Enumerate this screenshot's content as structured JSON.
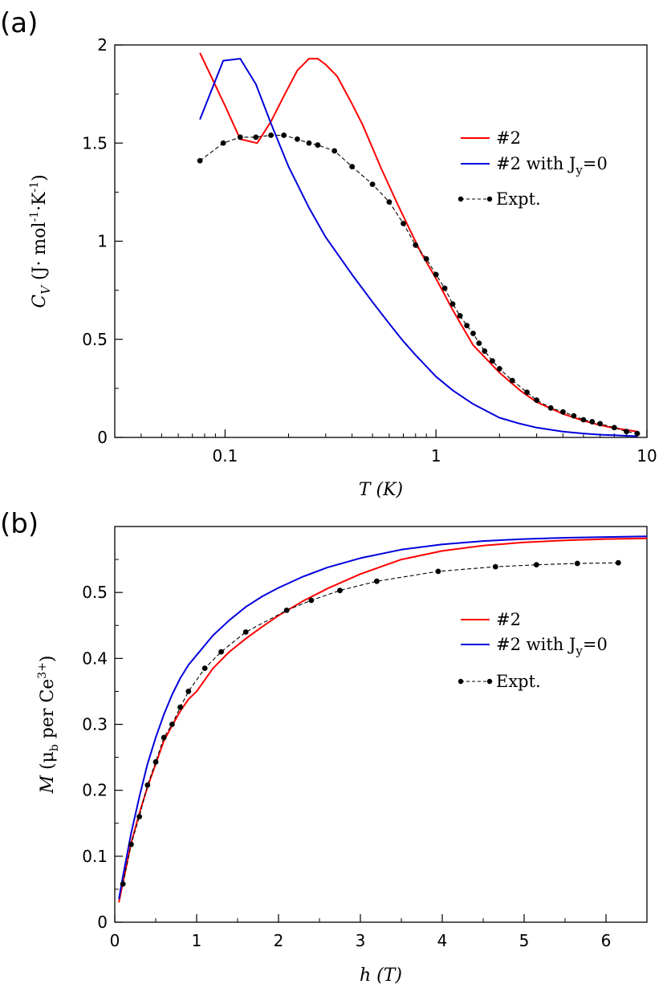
{
  "chart_data": [
    {
      "type": "line",
      "panel_tag": "(a)",
      "xscale": "log",
      "xlim": [
        0.03,
        10
      ],
      "ylim": [
        0,
        2
      ],
      "xticks": [
        0.1,
        1,
        10
      ],
      "xtick_labels": [
        "0.1",
        "1",
        "10"
      ],
      "yticks": [
        0,
        0.5,
        1,
        1.5,
        2
      ],
      "ytick_labels": [
        "0",
        "0.5",
        "1",
        "1.5",
        "2"
      ],
      "xlabel": "T (K)",
      "ylabel": {
        "main": "C",
        "sub": "V",
        "unit_open": "(J· mol",
        "exp1": "-1",
        "mid": "·K",
        "exp2": "-1",
        "unit_close": ")"
      },
      "legend_position": "right-middle",
      "series": [
        {
          "name": "#2",
          "color": "#ff0000",
          "style": "solid",
          "x": [
            0.076,
            0.1,
            0.118,
            0.142,
            0.165,
            0.19,
            0.22,
            0.25,
            0.275,
            0.3,
            0.34,
            0.4,
            0.45,
            0.55,
            0.65,
            0.75,
            0.85,
            1.0,
            1.2,
            1.5,
            2.0,
            2.5,
            3.0,
            4.0,
            5.0,
            6.0,
            7.0,
            9.0
          ],
          "y": [
            1.96,
            1.69,
            1.52,
            1.5,
            1.61,
            1.74,
            1.87,
            1.93,
            1.93,
            1.9,
            1.84,
            1.7,
            1.59,
            1.37,
            1.2,
            1.06,
            0.94,
            0.81,
            0.65,
            0.47,
            0.33,
            0.24,
            0.18,
            0.12,
            0.085,
            0.062,
            0.048,
            0.03
          ]
        },
        {
          "name": "#2 with J",
          "name_sub": "y",
          "name_suffix": "=0",
          "color": "#0000dd",
          "style": "solid",
          "x": [
            0.076,
            0.098,
            0.118,
            0.14,
            0.165,
            0.2,
            0.25,
            0.3,
            0.4,
            0.5,
            0.6,
            0.7,
            0.8,
            1.0,
            1.2,
            1.5,
            2.0,
            2.5,
            3.0,
            4.0,
            5.0,
            6.0,
            7.0,
            8.0,
            9.0
          ],
          "y": [
            1.62,
            1.92,
            1.93,
            1.8,
            1.6,
            1.38,
            1.17,
            1.02,
            0.83,
            0.69,
            0.58,
            0.49,
            0.42,
            0.31,
            0.24,
            0.17,
            0.1,
            0.07,
            0.05,
            0.03,
            0.02,
            0.014,
            0.011,
            0.008,
            0.006
          ]
        },
        {
          "name": "Expt.",
          "color": "#000000",
          "style": "dashed-markers",
          "x": [
            0.076,
            0.098,
            0.118,
            0.14,
            0.165,
            0.19,
            0.22,
            0.25,
            0.275,
            0.33,
            0.4,
            0.5,
            0.6,
            0.7,
            0.8,
            0.9,
            1.0,
            1.1,
            1.2,
            1.3,
            1.4,
            1.5,
            1.6,
            1.7,
            1.85,
            2.0,
            2.3,
            2.7,
            3.0,
            3.5,
            4.0,
            4.5,
            5.0,
            5.5,
            6.0,
            7.0,
            8.0,
            9.0
          ],
          "y": [
            1.41,
            1.5,
            1.53,
            1.53,
            1.54,
            1.54,
            1.52,
            1.5,
            1.49,
            1.46,
            1.38,
            1.29,
            1.2,
            1.09,
            0.98,
            0.91,
            0.83,
            0.76,
            0.68,
            0.62,
            0.57,
            0.53,
            0.48,
            0.44,
            0.39,
            0.35,
            0.29,
            0.23,
            0.19,
            0.15,
            0.13,
            0.11,
            0.09,
            0.08,
            0.07,
            0.05,
            0.03,
            0.02
          ]
        }
      ]
    },
    {
      "type": "line",
      "panel_tag": "(b)",
      "xscale": "linear",
      "xlim": [
        0,
        6.5
      ],
      "ylim": [
        0,
        0.6
      ],
      "xticks": [
        0,
        1,
        2,
        3,
        4,
        5,
        6
      ],
      "xtick_labels": [
        "0",
        "1",
        "2",
        "3",
        "4",
        "5",
        "6"
      ],
      "yticks": [
        0,
        0.1,
        0.2,
        0.3,
        0.4,
        0.5
      ],
      "ytick_labels": [
        "0",
        "0.1",
        "0.2",
        "0.3",
        "0.4",
        "0.5"
      ],
      "xlabel": "h (T)",
      "ylabel": {
        "main": "M",
        "unit_open": "(μ",
        "sub": "b",
        "mid": " per Ce",
        "exp": "3+",
        "unit_close": ")"
      },
      "legend_position": "right-middle",
      "series": [
        {
          "name": "#2",
          "color": "#ff0000",
          "style": "solid",
          "x": [
            0.05,
            0.1,
            0.2,
            0.3,
            0.4,
            0.5,
            0.6,
            0.7,
            0.8,
            0.9,
            1.0,
            1.2,
            1.4,
            1.6,
            1.8,
            2.0,
            2.3,
            2.6,
            3.0,
            3.5,
            4.0,
            4.5,
            5.0,
            5.5,
            6.0,
            6.5
          ],
          "y": [
            0.03,
            0.06,
            0.12,
            0.165,
            0.205,
            0.24,
            0.275,
            0.298,
            0.32,
            0.338,
            0.35,
            0.385,
            0.41,
            0.43,
            0.448,
            0.465,
            0.487,
            0.506,
            0.528,
            0.55,
            0.563,
            0.571,
            0.576,
            0.579,
            0.581,
            0.582
          ]
        },
        {
          "name": "#2 with J",
          "name_sub": "y",
          "name_suffix": "=0",
          "color": "#0000dd",
          "style": "solid",
          "x": [
            0.05,
            0.1,
            0.2,
            0.3,
            0.4,
            0.5,
            0.6,
            0.7,
            0.8,
            0.9,
            1.0,
            1.2,
            1.4,
            1.6,
            1.8,
            2.0,
            2.3,
            2.6,
            3.0,
            3.5,
            4.0,
            4.5,
            5.0,
            5.5,
            6.0,
            6.5
          ],
          "y": [
            0.035,
            0.07,
            0.135,
            0.19,
            0.24,
            0.28,
            0.315,
            0.345,
            0.37,
            0.39,
            0.405,
            0.435,
            0.458,
            0.478,
            0.494,
            0.507,
            0.524,
            0.538,
            0.552,
            0.565,
            0.573,
            0.578,
            0.581,
            0.583,
            0.584,
            0.585
          ]
        },
        {
          "name": "Expt.",
          "color": "#000000",
          "style": "dashed-markers",
          "x": [
            0.1,
            0.2,
            0.3,
            0.4,
            0.5,
            0.6,
            0.7,
            0.8,
            0.9,
            1.1,
            1.3,
            1.6,
            2.1,
            2.4,
            2.75,
            3.2,
            3.95,
            4.65,
            5.15,
            5.65,
            6.15
          ],
          "y": [
            0.058,
            0.118,
            0.16,
            0.208,
            0.243,
            0.28,
            0.3,
            0.326,
            0.35,
            0.385,
            0.41,
            0.44,
            0.473,
            0.488,
            0.503,
            0.517,
            0.532,
            0.539,
            0.542,
            0.544,
            0.545
          ]
        }
      ]
    }
  ]
}
